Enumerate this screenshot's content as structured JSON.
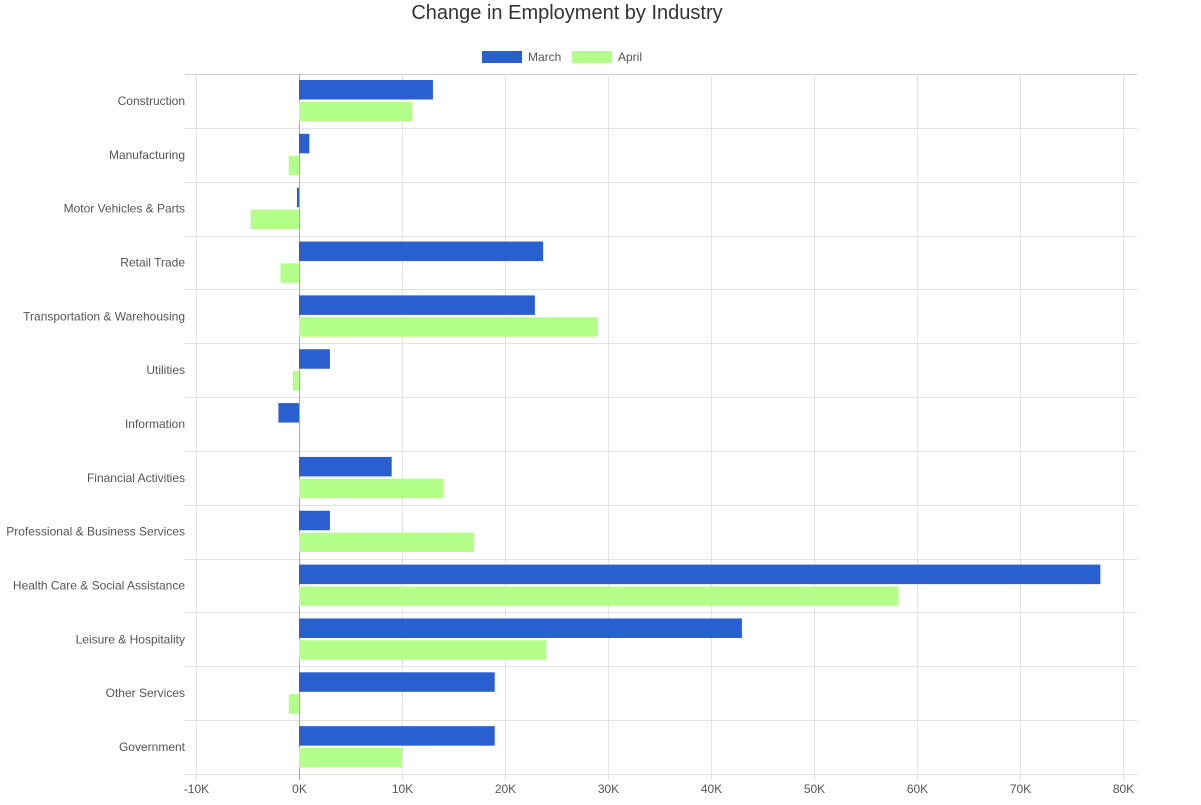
{
  "chart_data": {
    "type": "bar",
    "orientation": "horizontal",
    "title": "Change in Employment by Industry",
    "categories": [
      "Construction",
      "Manufacturing",
      "Motor Vehicles & Parts",
      "Retail Trade",
      "Transportation & Warehousing",
      "Utilities",
      "Information",
      "Financial Activities",
      "Professional & Business Services",
      "Health Care & Social Assistance",
      "Leisure & Hospitality",
      "Other Services",
      "Government"
    ],
    "series": [
      {
        "name": "March",
        "color": "#2a5fcf",
        "values": [
          13000,
          1000,
          -200,
          23700,
          22900,
          3000,
          -2000,
          9000,
          3000,
          77800,
          43000,
          19000,
          19000
        ]
      },
      {
        "name": "April",
        "color": "#b3ff8a",
        "values": [
          11000,
          -1000,
          -4700,
          -1800,
          29000,
          -600,
          0,
          14000,
          17000,
          58200,
          24000,
          -1000,
          10000
        ]
      }
    ],
    "xlim": [
      -10000,
      80000
    ],
    "x_ticks": [
      -10000,
      0,
      10000,
      20000,
      30000,
      40000,
      50000,
      60000,
      70000,
      80000
    ],
    "x_tick_labels": [
      "-10K",
      "0K",
      "10K",
      "20K",
      "30K",
      "40K",
      "50K",
      "60K",
      "70K",
      "80K"
    ],
    "legend_position": "top-center",
    "grid": true
  }
}
